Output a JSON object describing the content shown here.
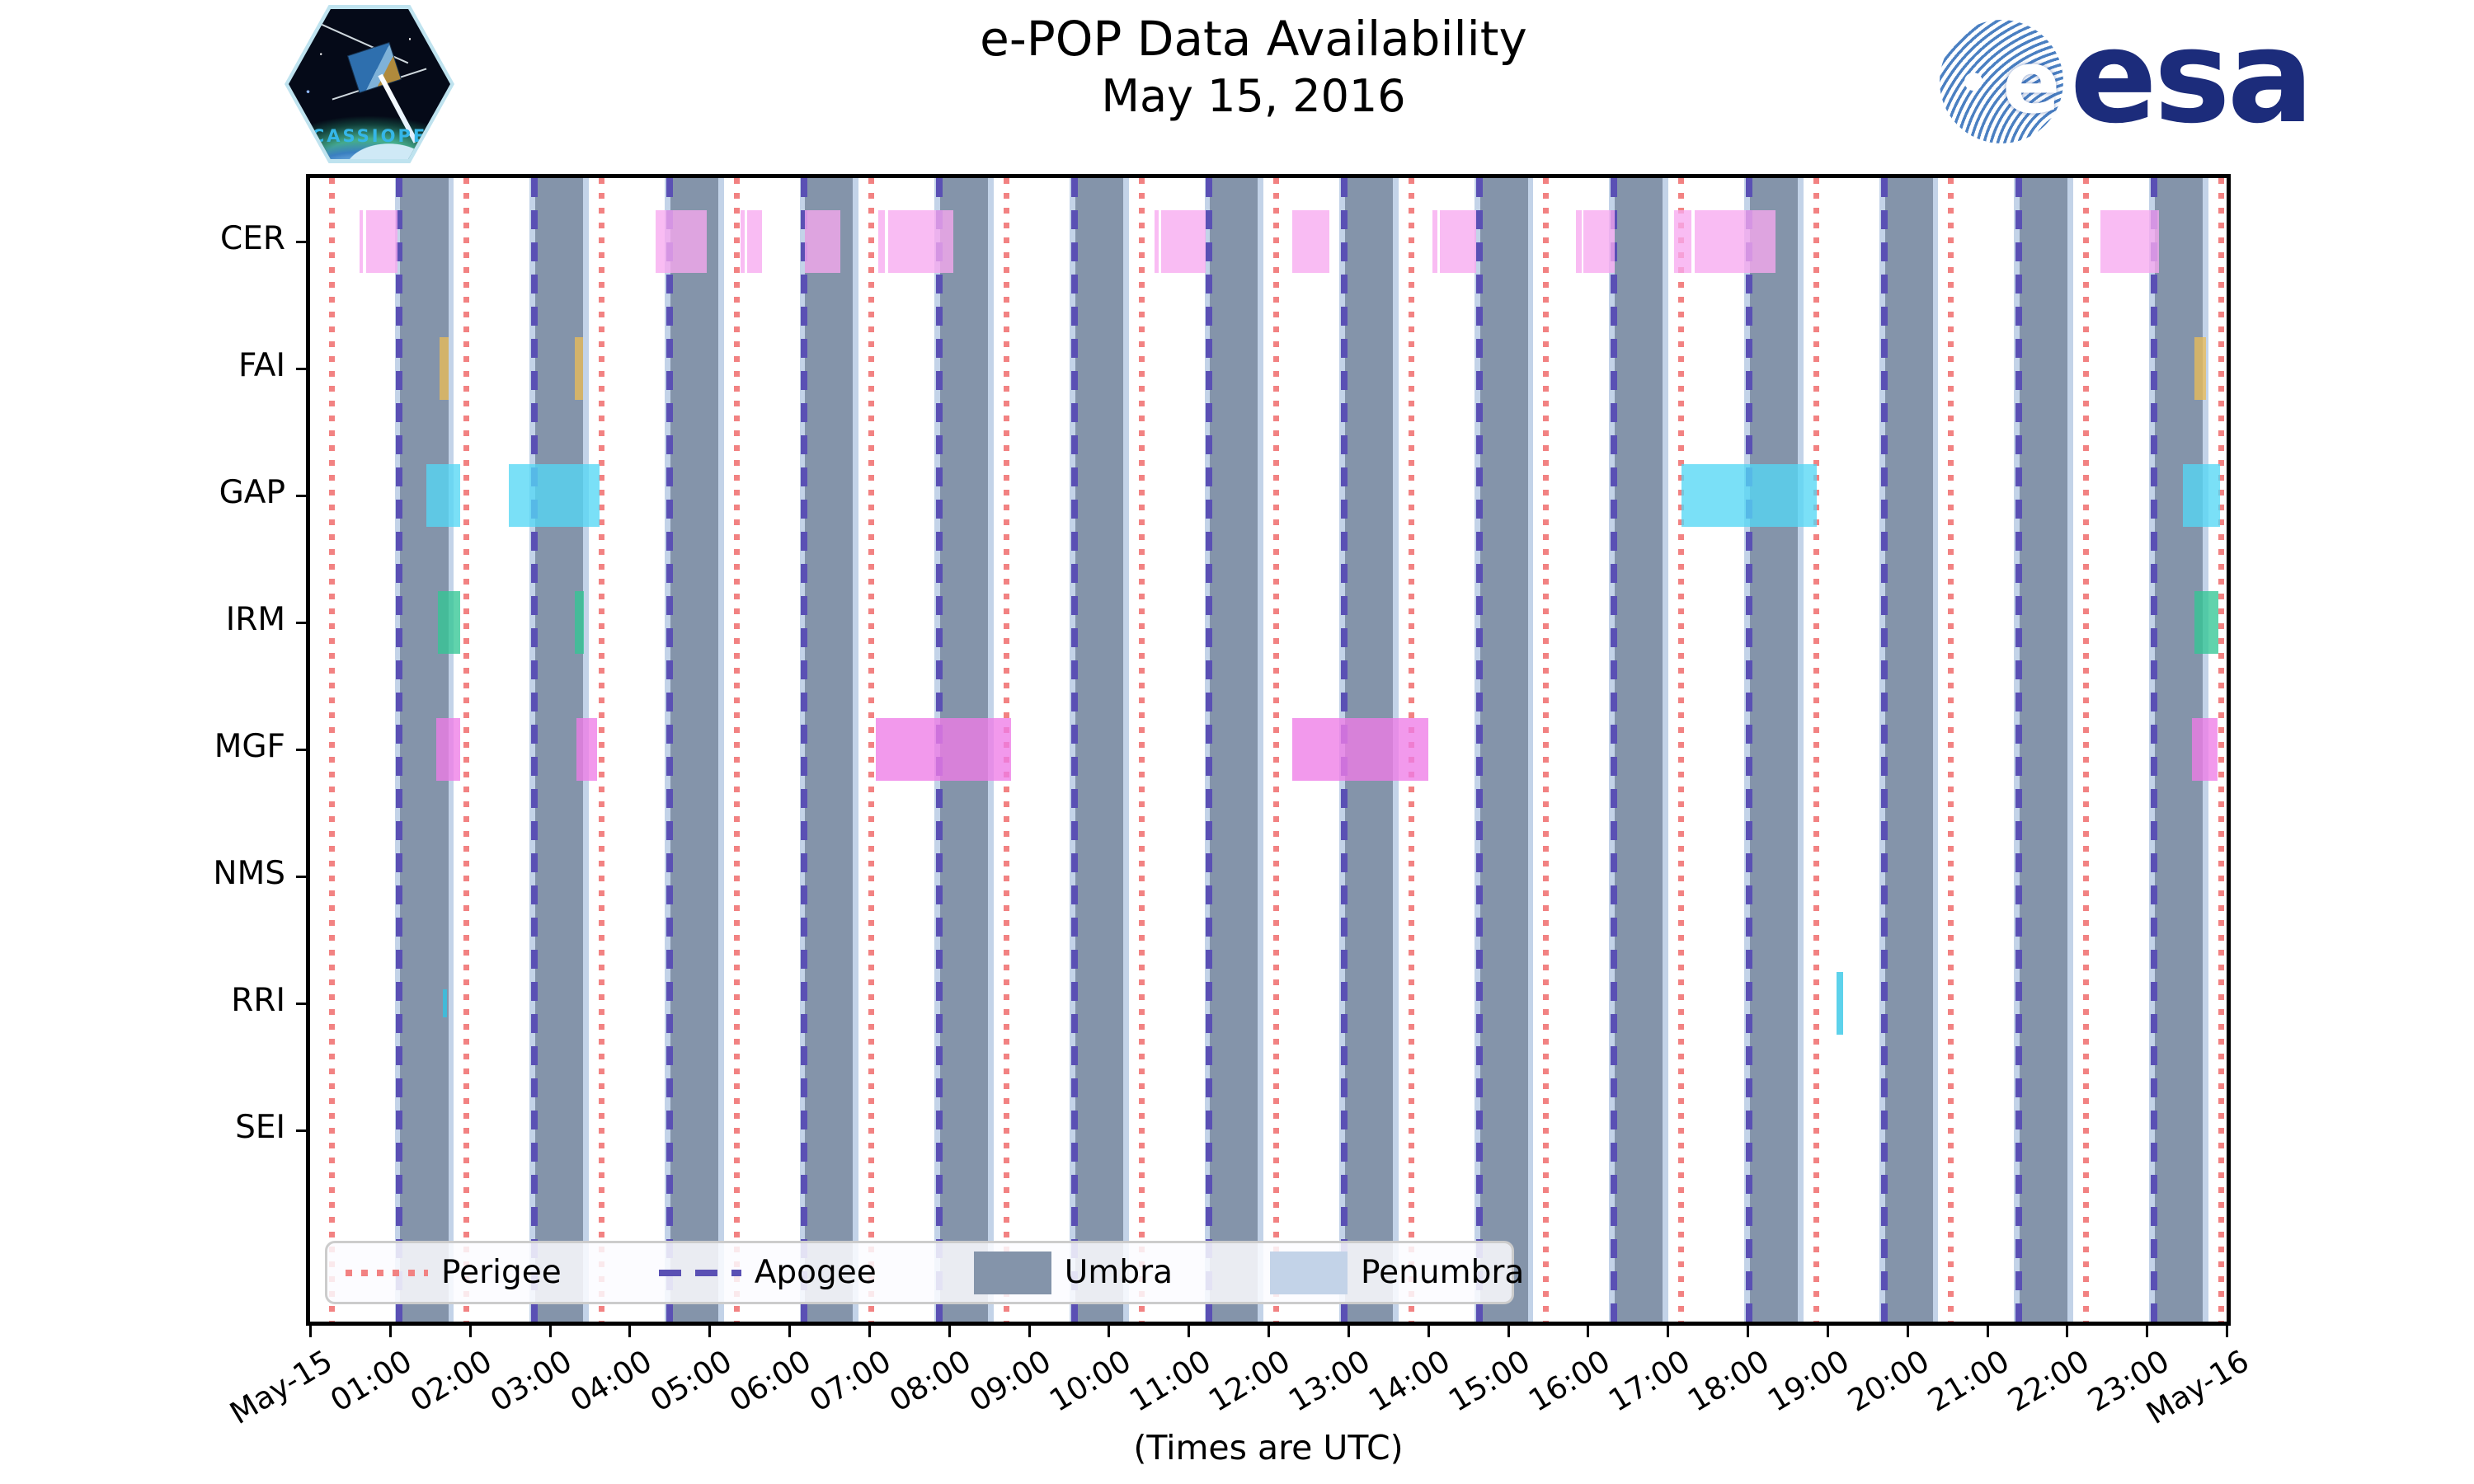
{
  "header": {
    "title_line1": "e-POP Data Availability",
    "title_line2": "May 15, 2016"
  },
  "branding": {
    "patch_label": "CASSIOPE",
    "esa_wordmark": "esa",
    "esa_globe_letter": "e",
    "esa_blue": "#1c2c7b"
  },
  "chart_data": {
    "type": "availability-timeline",
    "title": "e-POP Data Availability",
    "subtitle": "May 15, 2016",
    "xlabel": "(Times are UTC)",
    "axis_range_hours": [
      0,
      24
    ],
    "x_ticks": [
      "May-15",
      "01:00",
      "02:00",
      "03:00",
      "04:00",
      "05:00",
      "06:00",
      "07:00",
      "08:00",
      "09:00",
      "10:00",
      "11:00",
      "12:00",
      "13:00",
      "14:00",
      "15:00",
      "16:00",
      "17:00",
      "18:00",
      "19:00",
      "20:00",
      "21:00",
      "22:00",
      "23:00",
      "May-16"
    ],
    "rows": [
      "CER",
      "FAI",
      "GAP",
      "IRM",
      "MGF",
      "NMS",
      "RRI",
      "SEI"
    ],
    "row_colors": {
      "CER": "#f7a9f0",
      "FAI": "#e9bd58",
      "GAP": "#55d7f5",
      "IRM": "#33c795",
      "MGF": "#ee7ce7",
      "NMS": "#999999",
      "RRI": "#2fc5e5",
      "SEI": "#999999"
    },
    "bars_hours": {
      "CER": [
        [
          0.62,
          0.66
        ],
        [
          0.7,
          1.09
        ],
        [
          4.33,
          4.97
        ],
        [
          5.39,
          5.44
        ],
        [
          5.47,
          5.66
        ],
        [
          6.2,
          6.64
        ],
        [
          7.12,
          7.2
        ],
        [
          7.24,
          8.06
        ],
        [
          10.58,
          10.63
        ],
        [
          10.66,
          11.22
        ],
        [
          12.3,
          12.76
        ],
        [
          14.05,
          14.12
        ],
        [
          14.15,
          14.6
        ],
        [
          15.85,
          15.92
        ],
        [
          15.95,
          16.34
        ],
        [
          17.08,
          17.3
        ],
        [
          17.34,
          18.35
        ],
        [
          22.42,
          23.15
        ]
      ],
      "FAI": [
        [
          1.62,
          1.73
        ],
        [
          3.32,
          3.42
        ],
        [
          23.6,
          23.74
        ]
      ],
      "GAP": [
        [
          1.46,
          1.88
        ],
        [
          2.49,
          3.62
        ],
        [
          17.17,
          18.87
        ],
        [
          23.45,
          23.92
        ]
      ],
      "IRM": [
        [
          1.6,
          1.88
        ],
        [
          3.32,
          3.43
        ],
        [
          23.6,
          23.9
        ]
      ],
      "MGF": [
        [
          1.58,
          1.88
        ],
        [
          3.34,
          3.59
        ],
        [
          7.08,
          8.78
        ],
        [
          12.3,
          14.0
        ],
        [
          23.57,
          23.89
        ]
      ],
      "NMS": [],
      "RRI": [
        [
          1.66,
          1.71,
          "small"
        ],
        [
          19.12,
          19.2
        ]
      ],
      "SEI": []
    },
    "perigee_hours": [
      0.27,
      1.96,
      3.65,
      5.34,
      7.03,
      8.72,
      10.41,
      12.1,
      13.79,
      15.48,
      17.17,
      18.86,
      20.55,
      22.24,
      23.93
    ],
    "apogee_hours": [
      1.12,
      2.81,
      4.5,
      6.19,
      7.88,
      9.57,
      11.26,
      12.95,
      14.64,
      16.33,
      18.02,
      19.71,
      21.4,
      23.09
    ],
    "umbra_intervals_hours": [
      [
        1.13,
        1.73
      ],
      [
        2.82,
        3.42
      ],
      [
        4.51,
        5.11
      ],
      [
        6.2,
        6.8
      ],
      [
        7.89,
        8.49
      ],
      [
        9.58,
        10.18
      ],
      [
        11.27,
        11.87
      ],
      [
        12.96,
        13.56
      ],
      [
        14.65,
        15.25
      ],
      [
        16.34,
        16.94
      ],
      [
        18.03,
        18.63
      ],
      [
        19.72,
        20.32
      ],
      [
        21.41,
        22.01
      ],
      [
        23.1,
        23.7
      ]
    ],
    "penumbra_edge_width_hours": 0.07,
    "legend": [
      {
        "label": "Perigee",
        "kind": "dotted-line",
        "color": "#f28282"
      },
      {
        "label": "Apogee",
        "kind": "dashed-line",
        "color": "#5a50b4"
      },
      {
        "label": "Umbra",
        "kind": "patch",
        "color": "#8494aa"
      },
      {
        "label": "Penumbra",
        "kind": "patch",
        "color": "#c3d3e8"
      }
    ],
    "colors": {
      "umbra": "#8494aa",
      "penumbra": "#c3d3e8",
      "perigee": "#f28282",
      "apogee": "#5a50b4",
      "axis": "#000000",
      "background": "#ffffff"
    },
    "legend_position": "lower left",
    "grid": false
  }
}
